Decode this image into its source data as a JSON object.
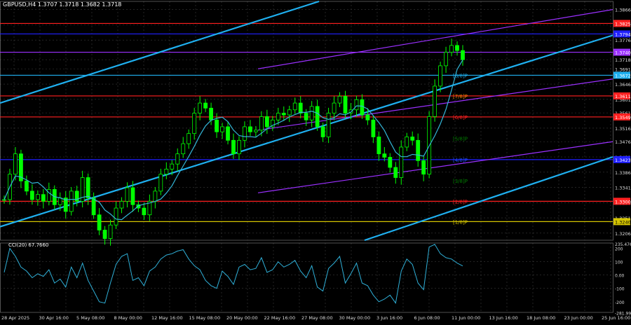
{
  "header": {
    "symbol_line": "GBPUSD,H4 1.3707 1.3718 1.3682 1.3718",
    "indicator_line": "CCI(20) 67.7660"
  },
  "colors": {
    "background": "#000000",
    "grid": "#3a3a3a",
    "bull_candle": "#00ff00",
    "bear_candle": "#00ff00",
    "ma_line": "#33b5d6",
    "channel_blue": "#1fb0f0",
    "channel_purple": "#9b30ff",
    "red_line": "#ff2020",
    "blue_line": "#2020ff",
    "cci_line": "#2fb0d8"
  },
  "chart_data": [
    {
      "type": "candlestick",
      "title": "GBPUSD,H4",
      "ylim": [
        1.3185,
        1.389
      ],
      "y_ticks": [
        "1.3866",
        "1.3821",
        "1.3776",
        "1.3718",
        "1.3691",
        "1.3646",
        "1.3601",
        "1.3561",
        "1.3516",
        "1.3476",
        "1.3431",
        "1.3386",
        "1.3341",
        "1.3296",
        "1.3251",
        "1.3206"
      ],
      "x_ticks": [
        "28 Apr 2025",
        "30 Apr 16:00",
        "5 May 08:00",
        "8 May 00:00",
        "12 May 16:00",
        "15 May 08:00",
        "20 May 00:00",
        "22 May 16:00",
        "27 May 08:00",
        "30 May 00:00",
        "3 Jun 16:00",
        "6 Jun 08:00",
        "11 Jun 00:00",
        "13 Jun 16:00",
        "18 Jun 08:00",
        "23 Jun 00:00",
        "25 Jun 16:00"
      ],
      "series": [
        {
          "values": [
            1.3305,
            1.338,
            1.344,
            1.336,
            1.333,
            1.3305,
            1.332,
            1.33,
            1.3335,
            1.329,
            1.331,
            1.327,
            1.333,
            1.33,
            1.337,
            1.331,
            1.326,
            1.3215,
            1.319,
            1.323,
            1.328,
            1.33,
            1.334,
            1.329,
            1.328,
            1.326,
            1.33,
            1.333,
            1.338,
            1.3395,
            1.341,
            1.344,
            1.347,
            1.35,
            1.356,
            1.359,
            1.3575,
            1.354,
            1.3505,
            1.352,
            1.348,
            1.344,
            1.348,
            1.352,
            1.3505,
            1.351,
            1.355,
            1.352,
            1.354,
            1.356,
            1.3555,
            1.357,
            1.359,
            1.356,
            1.354,
            1.358,
            1.352,
            1.349,
            1.356,
            1.359,
            1.361,
            1.356,
            1.357,
            1.36,
            1.3555,
            1.354,
            1.349,
            1.344,
            1.343,
            1.34,
            1.337,
            1.346,
            1.349,
            1.348,
            1.342,
            1.338,
            1.355,
            1.364,
            1.37,
            1.374,
            1.376,
            1.3745,
            1.3718
          ]
        }
      ],
      "hlines": [
        {
          "price": 1.3825,
          "label": "1.3825",
          "color": "#ff2020"
        },
        {
          "price": 1.3794,
          "label": "1.3794",
          "color": "#2020ff"
        },
        {
          "price": 1.374,
          "label": "1.3740",
          "color": "#9b30ff"
        },
        {
          "price": 1.3672,
          "label": "1.3672",
          "color": "#1fb0f0"
        },
        {
          "price": 1.3611,
          "label": "1.3611",
          "color": "#ff2020"
        },
        {
          "price": 1.3549,
          "label": "1.3549",
          "color": "#ff2020"
        },
        {
          "price": 1.3423,
          "label": "1.3423",
          "color": "#2020ff"
        },
        {
          "price": 1.33,
          "label": "1.3300",
          "color": "#ff2020"
        },
        {
          "price": 1.324,
          "label": "1.3240",
          "color": "#d4c400"
        }
      ],
      "murray_labels": [
        {
          "text": "[8/8]P",
          "color": "#1fb0f0",
          "price": 1.3672
        },
        {
          "text": "[7/8]P",
          "color": "#ff8c00",
          "price": 1.3611
        },
        {
          "text": "[6/8]P",
          "color": "#ff2020",
          "price": 1.3549
        },
        {
          "text": "[5/8]P",
          "color": "#008000",
          "price": 1.3486
        },
        {
          "text": "[4/8]P",
          "color": "#1f4fff",
          "price": 1.3423
        },
        {
          "text": "[3/8]P",
          "color": "#008000",
          "price": 1.3361
        },
        {
          "text": "[2/8]P",
          "color": "#ff2020",
          "price": 1.33
        },
        {
          "text": "[1/8]P",
          "color": "#d4c400",
          "price": 1.324
        }
      ]
    },
    {
      "type": "line",
      "title": "CCI(20) 67.7660",
      "ylim": [
        -280,
        240
      ],
      "y_ticks": [
        "235.4768",
        "200",
        "100",
        "0.00",
        "-100",
        "-200",
        "-281.996"
      ],
      "series": [
        {
          "name": "CCI(20)",
          "values": [
            20,
            200,
            140,
            60,
            30,
            -20,
            10,
            -10,
            40,
            -60,
            -30,
            -90,
            60,
            -20,
            90,
            -40,
            -120,
            -200,
            -210,
            -60,
            80,
            140,
            160,
            -40,
            -20,
            -80,
            30,
            60,
            120,
            150,
            160,
            180,
            190,
            120,
            70,
            40,
            -40,
            -80,
            -100,
            30,
            -10,
            -70,
            60,
            80,
            40,
            50,
            130,
            20,
            40,
            100,
            60,
            80,
            110,
            30,
            -20,
            70,
            -90,
            -120,
            50,
            90,
            140,
            -60,
            10,
            90,
            -60,
            -80,
            -150,
            -200,
            -180,
            -150,
            -210,
            30,
            120,
            80,
            -60,
            -110,
            210,
            230,
            160,
            130,
            120,
            90,
            68
          ]
        }
      ]
    }
  ]
}
